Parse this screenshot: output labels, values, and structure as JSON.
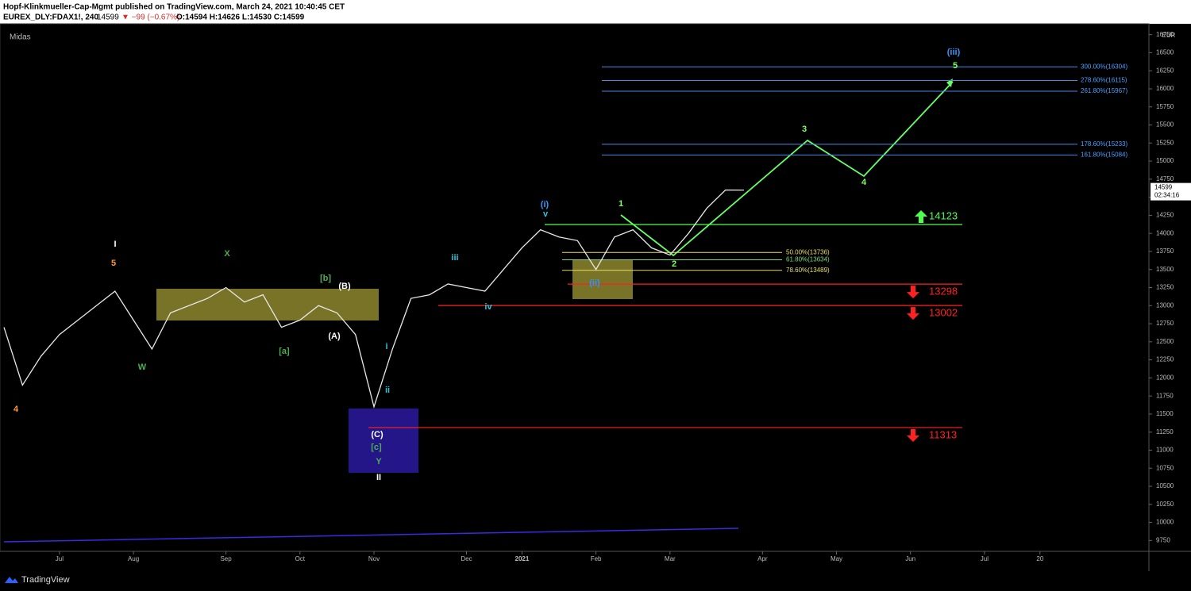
{
  "header": {
    "title": "Hopf-Klinkmueller-Cap-Mgmt published on TradingView.com, March 24, 2021 10:40:45 CET",
    "symbol": "EUREX_DLY:FDAX1!, 240",
    "last": "14599",
    "change": "▼ −99 (−0.67%)",
    "ohlc": "O:14594 H:14626 L:14530 C:14599"
  },
  "footer": {
    "brand": "TradingView"
  },
  "chart_data": {
    "type": "line",
    "indicator": "Midas",
    "currency": "EUR",
    "categories": [
      null,
      null,
      null,
      "Jul",
      null,
      null,
      null,
      "Aug",
      null,
      null,
      null,
      null,
      "Sep",
      null,
      null,
      null,
      "Oct",
      null,
      null,
      null,
      "Nov",
      null,
      null,
      null,
      null,
      "Dec",
      null,
      null,
      "2021",
      null,
      null,
      null,
      "Feb",
      null,
      null,
      null,
      "Mar",
      null,
      null,
      null,
      null,
      "Apr",
      null,
      null,
      null,
      "May",
      null,
      null,
      null,
      "Jun",
      null,
      null,
      null,
      "Jul",
      null,
      null,
      "20"
    ],
    "series": [
      {
        "name": "FDAX1!",
        "color": "#e8e8e8",
        "values": [
          12700,
          11900,
          12300,
          12600,
          12800,
          13000,
          13200,
          12800,
          12400,
          12900,
          13000,
          13100,
          13250,
          13050,
          13150,
          12700,
          12800,
          13000,
          12900,
          12600,
          11600,
          12400,
          13100,
          13150,
          13300,
          13250,
          13200,
          13500,
          13800,
          14050,
          13950,
          13900,
          13500,
          13950,
          14050,
          13800,
          13700,
          14000,
          14350,
          14600,
          14599,
          null,
          null,
          null,
          null,
          null,
          null,
          null,
          null,
          null,
          null,
          null,
          null,
          null,
          null,
          null,
          null
        ]
      }
    ],
    "ylim": [
      9600,
      16900
    ],
    "yticks": [
      9750,
      10000,
      10250,
      10500,
      10750,
      11000,
      11250,
      11500,
      11750,
      12000,
      12250,
      12500,
      12750,
      13000,
      13250,
      13500,
      13750,
      14000,
      14250,
      14500,
      14750,
      15000,
      15250,
      15500,
      15750,
      16000,
      16250,
      16500,
      16750
    ],
    "last_price": 14599,
    "countdown": "02:34:16",
    "levels": [
      {
        "value": 14123,
        "color": "#4cff4c",
        "direction": "up"
      },
      {
        "value": 13298,
        "color": "#ff2020",
        "direction": "down"
      },
      {
        "value": 13002,
        "color": "#ff2020",
        "direction": "down"
      },
      {
        "value": 11313,
        "color": "#ff2020",
        "direction": "down"
      }
    ],
    "fib_extensions": [
      {
        "value": 16304,
        "label": "300.00%(16304)"
      },
      {
        "value": 16115,
        "label": "278.60%(16115)"
      },
      {
        "value": 15967,
        "label": "261.80%(15967)"
      },
      {
        "value": 15233,
        "label": "178.60%(15233)"
      },
      {
        "value": 15084,
        "label": "161.80%(15084)"
      }
    ],
    "fib_retracements": [
      {
        "value": 13736,
        "label": "50.00%(13736)"
      },
      {
        "value": 13634,
        "label": "61.80%(13634)"
      },
      {
        "value": 13489,
        "label": "78.60%(13489)"
      }
    ],
    "wave_labels": [
      "I",
      "5",
      "X",
      "[b]",
      "(B)",
      "W",
      "[a]",
      "(A)",
      "4",
      "i",
      "ii",
      "(C)",
      "[c]",
      "Y",
      "II",
      "iii",
      "iv",
      "(i)",
      "v",
      "(ii)",
      "1",
      "2",
      "3",
      "4",
      "5",
      "(iii)"
    ]
  }
}
